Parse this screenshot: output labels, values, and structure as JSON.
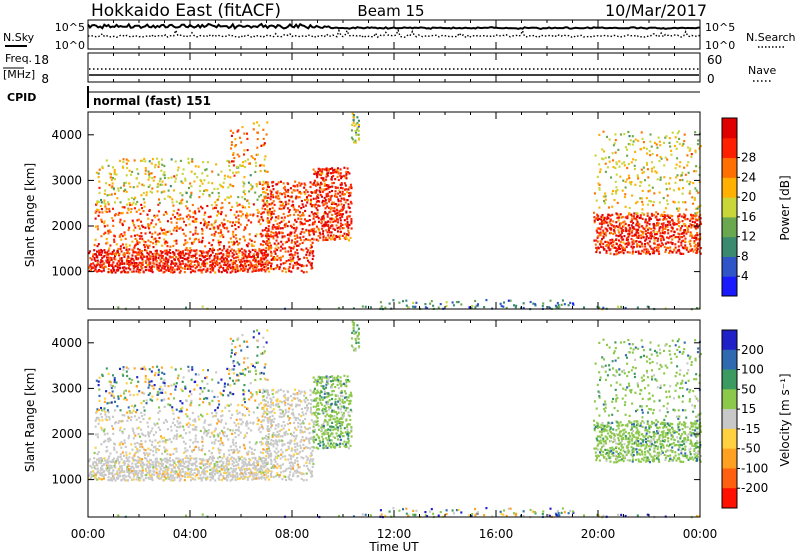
{
  "header": {
    "title": "Hokkaido East (fitACF)",
    "beam": "Beam 15",
    "date": "10/Mar/2017"
  },
  "top_panels": {
    "nsky_label": "N.Sky",
    "nsearch_label": "N.Search",
    "noise_left_ticks": [
      "10^5",
      "10^0"
    ],
    "noise_right_ticks": [
      "10^5",
      "10^0"
    ],
    "freq_label": "Freq.",
    "freq_unit": "[MHz]",
    "freq_ticks": [
      "18",
      "8"
    ],
    "nave_label": "Nave",
    "nave_ticks": [
      "60",
      "0"
    ],
    "cpid_label": "CPID",
    "cpid_value": "normal (fast) 151"
  },
  "chart_data": [
    {
      "type": "heatmap",
      "name": "power",
      "xlabel": "Time UT",
      "ylabel": "Slant Range [km]",
      "x_ticks": [
        "00:00",
        "04:00",
        "08:00",
        "12:00",
        "16:00",
        "20:00",
        "00:00"
      ],
      "y_ticks": [
        1000,
        2000,
        3000,
        4000
      ],
      "xlim_hours": [
        0,
        24
      ],
      "ylim_km": [
        180,
        4500
      ],
      "colorbar": {
        "label": "Power [dB]",
        "ticks": [
          4,
          8,
          12,
          16,
          20,
          24,
          28
        ],
        "colors": [
          "#1a1aff",
          "#2f55c8",
          "#3a8a70",
          "#6aa84f",
          "#c8d63a",
          "#ffb000",
          "#ff7000",
          "#ff2000",
          "#e00000"
        ]
      }
    },
    {
      "type": "heatmap",
      "name": "velocity",
      "xlabel": "Time UT",
      "ylabel": "Slant Range [km]",
      "x_ticks": [
        "00:00",
        "04:00",
        "08:00",
        "12:00",
        "16:00",
        "20:00",
        "00:00"
      ],
      "y_ticks": [
        1000,
        2000,
        3000,
        4000
      ],
      "xlim_hours": [
        0,
        24
      ],
      "ylim_km": [
        180,
        4500
      ],
      "colorbar": {
        "label": "Velocity [m s⁻¹]",
        "ticks": [
          200,
          100,
          50,
          15,
          -15,
          -50,
          -100,
          -200
        ],
        "colors": [
          "#2020c8",
          "#2f6ab0",
          "#3a9a60",
          "#8cc84a",
          "#c8c8c8",
          "#ffd040",
          "#ffa020",
          "#ff6010",
          "#ff1000"
        ]
      }
    }
  ]
}
